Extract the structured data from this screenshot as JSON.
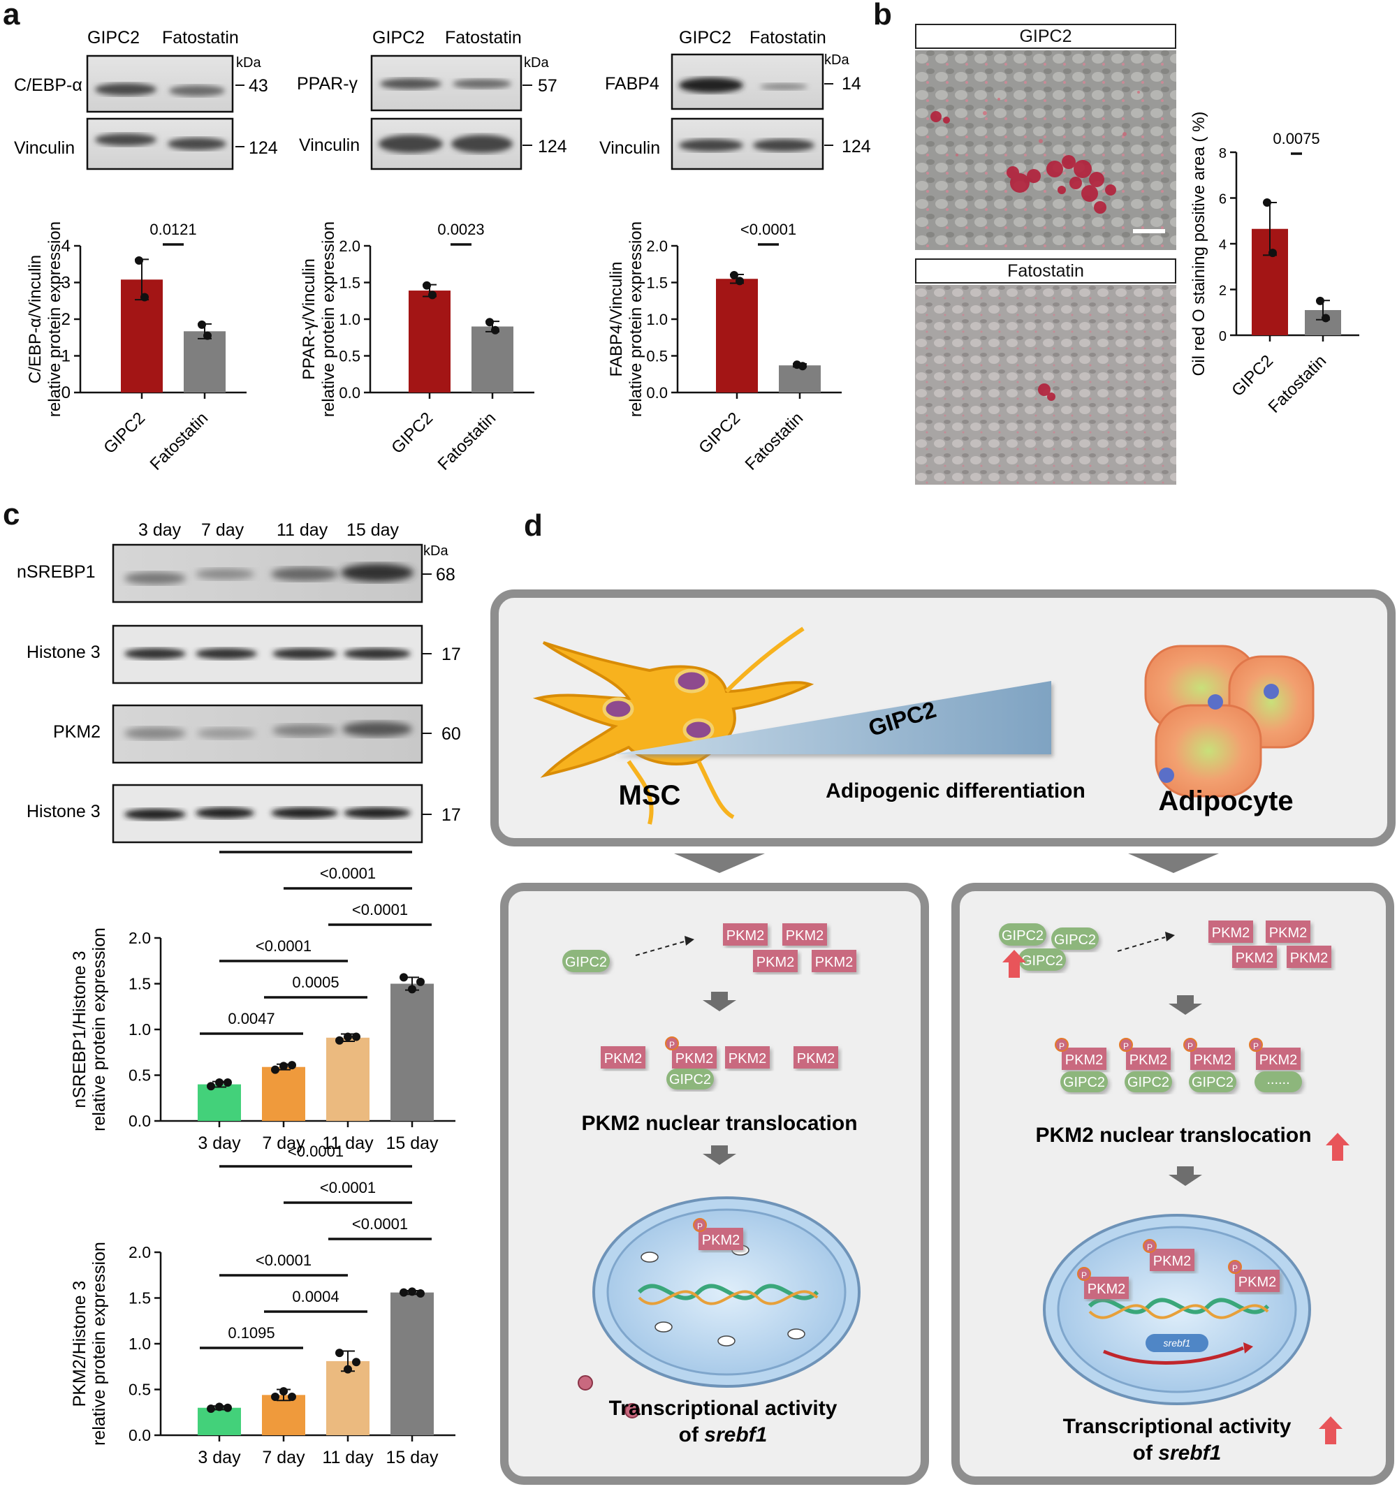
{
  "panel_labels": {
    "a": "a",
    "b": "b",
    "c": "c",
    "d": "d"
  },
  "panel_a": {
    "blots": [
      {
        "lanes": [
          "GIPC2",
          "Fatostatin"
        ],
        "kda": "kDa",
        "target": "C/EBP-α",
        "target_kda": "43",
        "loading": "Vinculin",
        "loading_kda": "124"
      },
      {
        "lanes": [
          "GIPC2",
          "Fatostatin"
        ],
        "kda": "kDa",
        "target": "PPAR-γ",
        "target_kda": "57",
        "loading": "Vinculin",
        "loading_kda": "124"
      },
      {
        "lanes": [
          "GIPC2",
          "Fatostatin"
        ],
        "kda": "kDa",
        "target": "FABP4",
        "target_kda": "14",
        "loading": "Vinculin",
        "loading_kda": "124"
      }
    ]
  },
  "panel_b": {
    "image_titles": [
      "GIPC2",
      "Fatostatin"
    ]
  },
  "panel_d": {
    "top": {
      "msc": "MSC",
      "gipc2": "GIPC2",
      "adipo_diff": "Adipogenic differentiation",
      "adipocyte": "Adipocyte"
    },
    "left": {
      "gipc2": "GIPC2",
      "pkm2": "PKM2",
      "p": "P",
      "translocation": "PKM2 nuclear translocation",
      "transcription_line1": "Transcriptional activity",
      "transcription_of": "of ",
      "transcription_gene": "srebf1"
    },
    "right": {
      "gipc2": "GIPC2",
      "pkm2": "PKM2",
      "p": "P",
      "dots": "......",
      "translocation": "PKM2 nuclear translocation",
      "transcription_line1": "Transcriptional activity",
      "transcription_of": "of ",
      "transcription_gene": "srebf1",
      "gene_label": "srebf1"
    },
    "colors": {
      "pkm2": "#c9697f",
      "gipc2": "#8db67c",
      "up_arrow": "#e8555a",
      "nucleus": "#a9cbea",
      "panel_bg": "#efefef"
    }
  },
  "chart_data": [
    {
      "id": "a1",
      "type": "bar",
      "categories": [
        "GIPC2",
        "Fatostatin"
      ],
      "values": [
        3.08,
        1.67
      ],
      "errors": [
        0.55,
        0.2
      ],
      "points": [
        [
          3.6,
          2.6
        ],
        [
          1.85,
          1.55
        ]
      ],
      "ylabel_line1": "C/EBP-α/Vinculin",
      "ylabel_line2": "relative protein expression",
      "ylim": [
        0,
        4
      ],
      "yticks": [
        "0",
        "1",
        "2",
        "3",
        "4"
      ],
      "colors": [
        "#a31515",
        "#7f7f7f"
      ],
      "comparisons": [
        {
          "label": "0.0121",
          "from": 0,
          "to": 1
        }
      ]
    },
    {
      "id": "a2",
      "type": "bar",
      "categories": [
        "GIPC2",
        "Fatostatin"
      ],
      "values": [
        1.39,
        0.9
      ],
      "errors": [
        0.08,
        0.07
      ],
      "points": [
        [
          1.46,
          1.33
        ],
        [
          0.96,
          0.85
        ]
      ],
      "ylabel_line1": "PPAR-γ/Vinculin",
      "ylabel_line2": "relative protein expression",
      "ylim": [
        0,
        2.0
      ],
      "yticks": [
        "0.0",
        "0.5",
        "1.0",
        "1.5",
        "2.0"
      ],
      "colors": [
        "#a31515",
        "#7f7f7f"
      ],
      "comparisons": [
        {
          "label": "0.0023",
          "from": 0,
          "to": 1
        }
      ]
    },
    {
      "id": "a3",
      "type": "bar",
      "categories": [
        "GIPC2",
        "Fatostatin"
      ],
      "values": [
        1.55,
        0.37
      ],
      "errors": [
        0.06,
        0.02
      ],
      "points": [
        [
          1.6,
          1.52
        ],
        [
          0.38,
          0.36
        ]
      ],
      "ylabel_line1": "FABP4/Vinculin",
      "ylabel_line2": "relative protein expression",
      "ylim": [
        0,
        2.0
      ],
      "yticks": [
        "0.0",
        "0.5",
        "1.0",
        "1.5",
        "2.0"
      ],
      "colors": [
        "#a31515",
        "#7f7f7f"
      ],
      "comparisons": [
        {
          "label": "<0.0001",
          "from": 0,
          "to": 1
        }
      ]
    },
    {
      "id": "b1",
      "type": "bar",
      "categories": [
        "GIPC2",
        "Fatostatin"
      ],
      "values": [
        4.65,
        1.1
      ],
      "errors": [
        1.15,
        0.42
      ],
      "points": [
        [
          5.8,
          3.6
        ],
        [
          1.5,
          0.75
        ]
      ],
      "ylabel_line1": "Oil red O staining positive area ( %)",
      "ylabel_line2": "",
      "ylim": [
        0,
        8
      ],
      "yticks": [
        "0",
        "2",
        "4",
        "6",
        "8"
      ],
      "colors": [
        "#a31515",
        "#7f7f7f"
      ],
      "comparisons": [
        {
          "label": "0.0075",
          "from": 0,
          "to": 1
        }
      ]
    },
    {
      "id": "c1",
      "type": "bar",
      "categories": [
        "3 day",
        "7 day",
        "11 day",
        "15 day"
      ],
      "values": [
        0.4,
        0.59,
        0.91,
        1.5
      ],
      "errors": [
        0.03,
        0.03,
        0.04,
        0.07
      ],
      "points": [
        [
          0.38,
          0.42,
          0.42
        ],
        [
          0.56,
          0.6,
          0.61
        ],
        [
          0.88,
          0.92,
          0.92
        ],
        [
          1.57,
          1.44,
          1.52
        ]
      ],
      "ylabel_line1": "nSREBP1/Histone 3",
      "ylabel_line2": "relative protein expression",
      "ylim": [
        0,
        2.0
      ],
      "yticks": [
        "0.0",
        "0.5",
        "1.0",
        "1.5",
        "2.0"
      ],
      "colors": [
        "#43d17a",
        "#ef9a3c",
        "#ebba7f",
        "#7f7f7f"
      ],
      "comparisons": [
        {
          "label": "0.0047",
          "from": 0,
          "to": 1
        },
        {
          "label": "0.0005",
          "from": 1,
          "to": 2
        },
        {
          "label": "<0.0001",
          "from": 0,
          "to": 2
        },
        {
          "label": "<0.0001",
          "from": 2,
          "to": 3
        },
        {
          "label": "<0.0001",
          "from": 1,
          "to": 3
        },
        {
          "label": "<0.0001",
          "from": 0,
          "to": 3
        }
      ]
    },
    {
      "id": "c2",
      "type": "bar",
      "categories": [
        "3 day",
        "7 day",
        "11 day",
        "15 day"
      ],
      "values": [
        0.3,
        0.44,
        0.81,
        1.56
      ],
      "errors": [
        0.02,
        0.06,
        0.11,
        0.02
      ],
      "points": [
        [
          0.29,
          0.31,
          0.3
        ],
        [
          0.42,
          0.48,
          0.42
        ],
        [
          0.9,
          0.72,
          0.8
        ],
        [
          1.56,
          1.57,
          1.55
        ]
      ],
      "ylabel_line1": "PKM2/Histone 3",
      "ylabel_line2": "relative protein expression",
      "ylim": [
        0,
        2.0
      ],
      "yticks": [
        "0.0",
        "0.5",
        "1.0",
        "1.5",
        "2.0"
      ],
      "colors": [
        "#43d17a",
        "#ef9a3c",
        "#ebba7f",
        "#7f7f7f"
      ],
      "comparisons": [
        {
          "label": "0.1095",
          "from": 0,
          "to": 1
        },
        {
          "label": "0.0004",
          "from": 1,
          "to": 2
        },
        {
          "label": "<0.0001",
          "from": 0,
          "to": 2
        },
        {
          "label": "<0.0001",
          "from": 2,
          "to": 3
        },
        {
          "label": "<0.0001",
          "from": 1,
          "to": 3
        },
        {
          "label": "<0.0001",
          "from": 0,
          "to": 3
        }
      ]
    }
  ],
  "panel_c": {
    "lanes": [
      "3 day",
      "7 day",
      "11 day",
      "15 day"
    ],
    "kda": "kDa",
    "blots": [
      {
        "label": "nSREBP1",
        "kda": "68"
      },
      {
        "label": "Histone 3",
        "kda": "17"
      },
      {
        "label": "PKM2",
        "kda": "60"
      },
      {
        "label": "Histone 3",
        "kda": "17"
      }
    ]
  }
}
